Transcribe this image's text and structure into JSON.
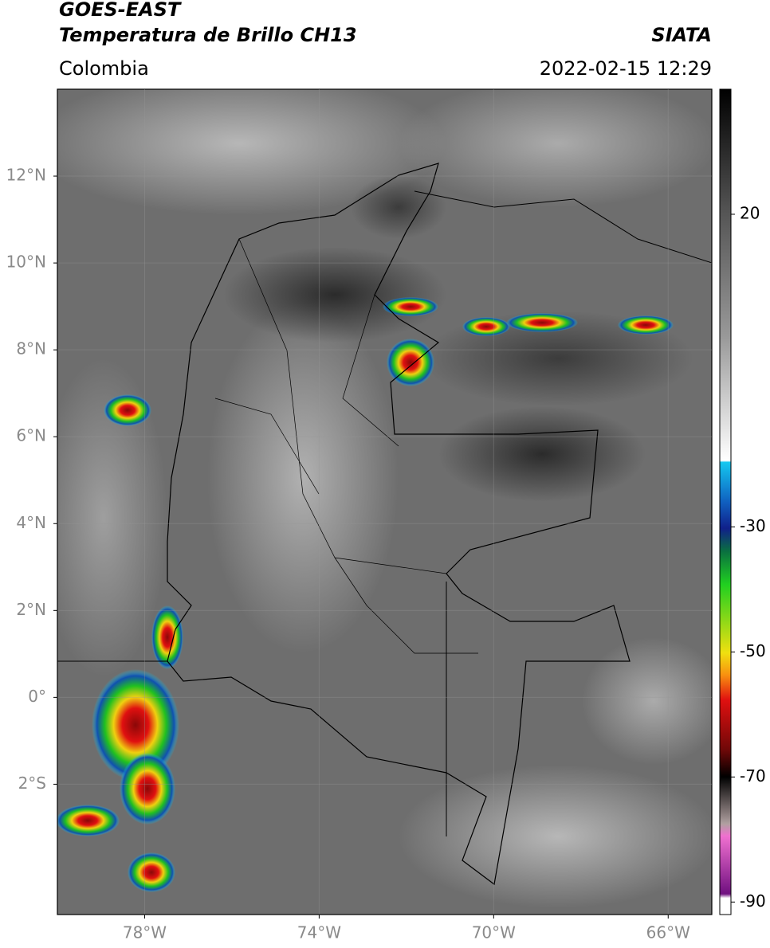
{
  "header": {
    "title": "GOES-EAST",
    "subtitle": "Temperatura de Brillo CH13",
    "source": "SIATA",
    "region": "Colombia",
    "datetime": "2022-02-15 12:29"
  },
  "map": {
    "lonlim": [
      -80,
      -65
    ],
    "latlim": [
      -5,
      14
    ],
    "lat_ticks": [
      {
        "value": 12,
        "label": "12°N"
      },
      {
        "value": 10,
        "label": "10°N"
      },
      {
        "value": 8,
        "label": "8°N"
      },
      {
        "value": 6,
        "label": "6°N"
      },
      {
        "value": 4,
        "label": "4°N"
      },
      {
        "value": 2,
        "label": "2°N"
      },
      {
        "value": 0,
        "label": "0°"
      },
      {
        "value": -2,
        "label": "2°S"
      }
    ],
    "lon_ticks": [
      {
        "value": -78,
        "label": "78°W"
      },
      {
        "value": -74,
        "label": "74°W"
      },
      {
        "value": -70,
        "label": "70°W"
      },
      {
        "value": -66,
        "label": "66°W"
      }
    ],
    "grid": true
  },
  "colorbar": {
    "range": [
      -92,
      40
    ],
    "ticks": [
      20,
      -30,
      -50,
      -70,
      -90
    ]
  }
}
